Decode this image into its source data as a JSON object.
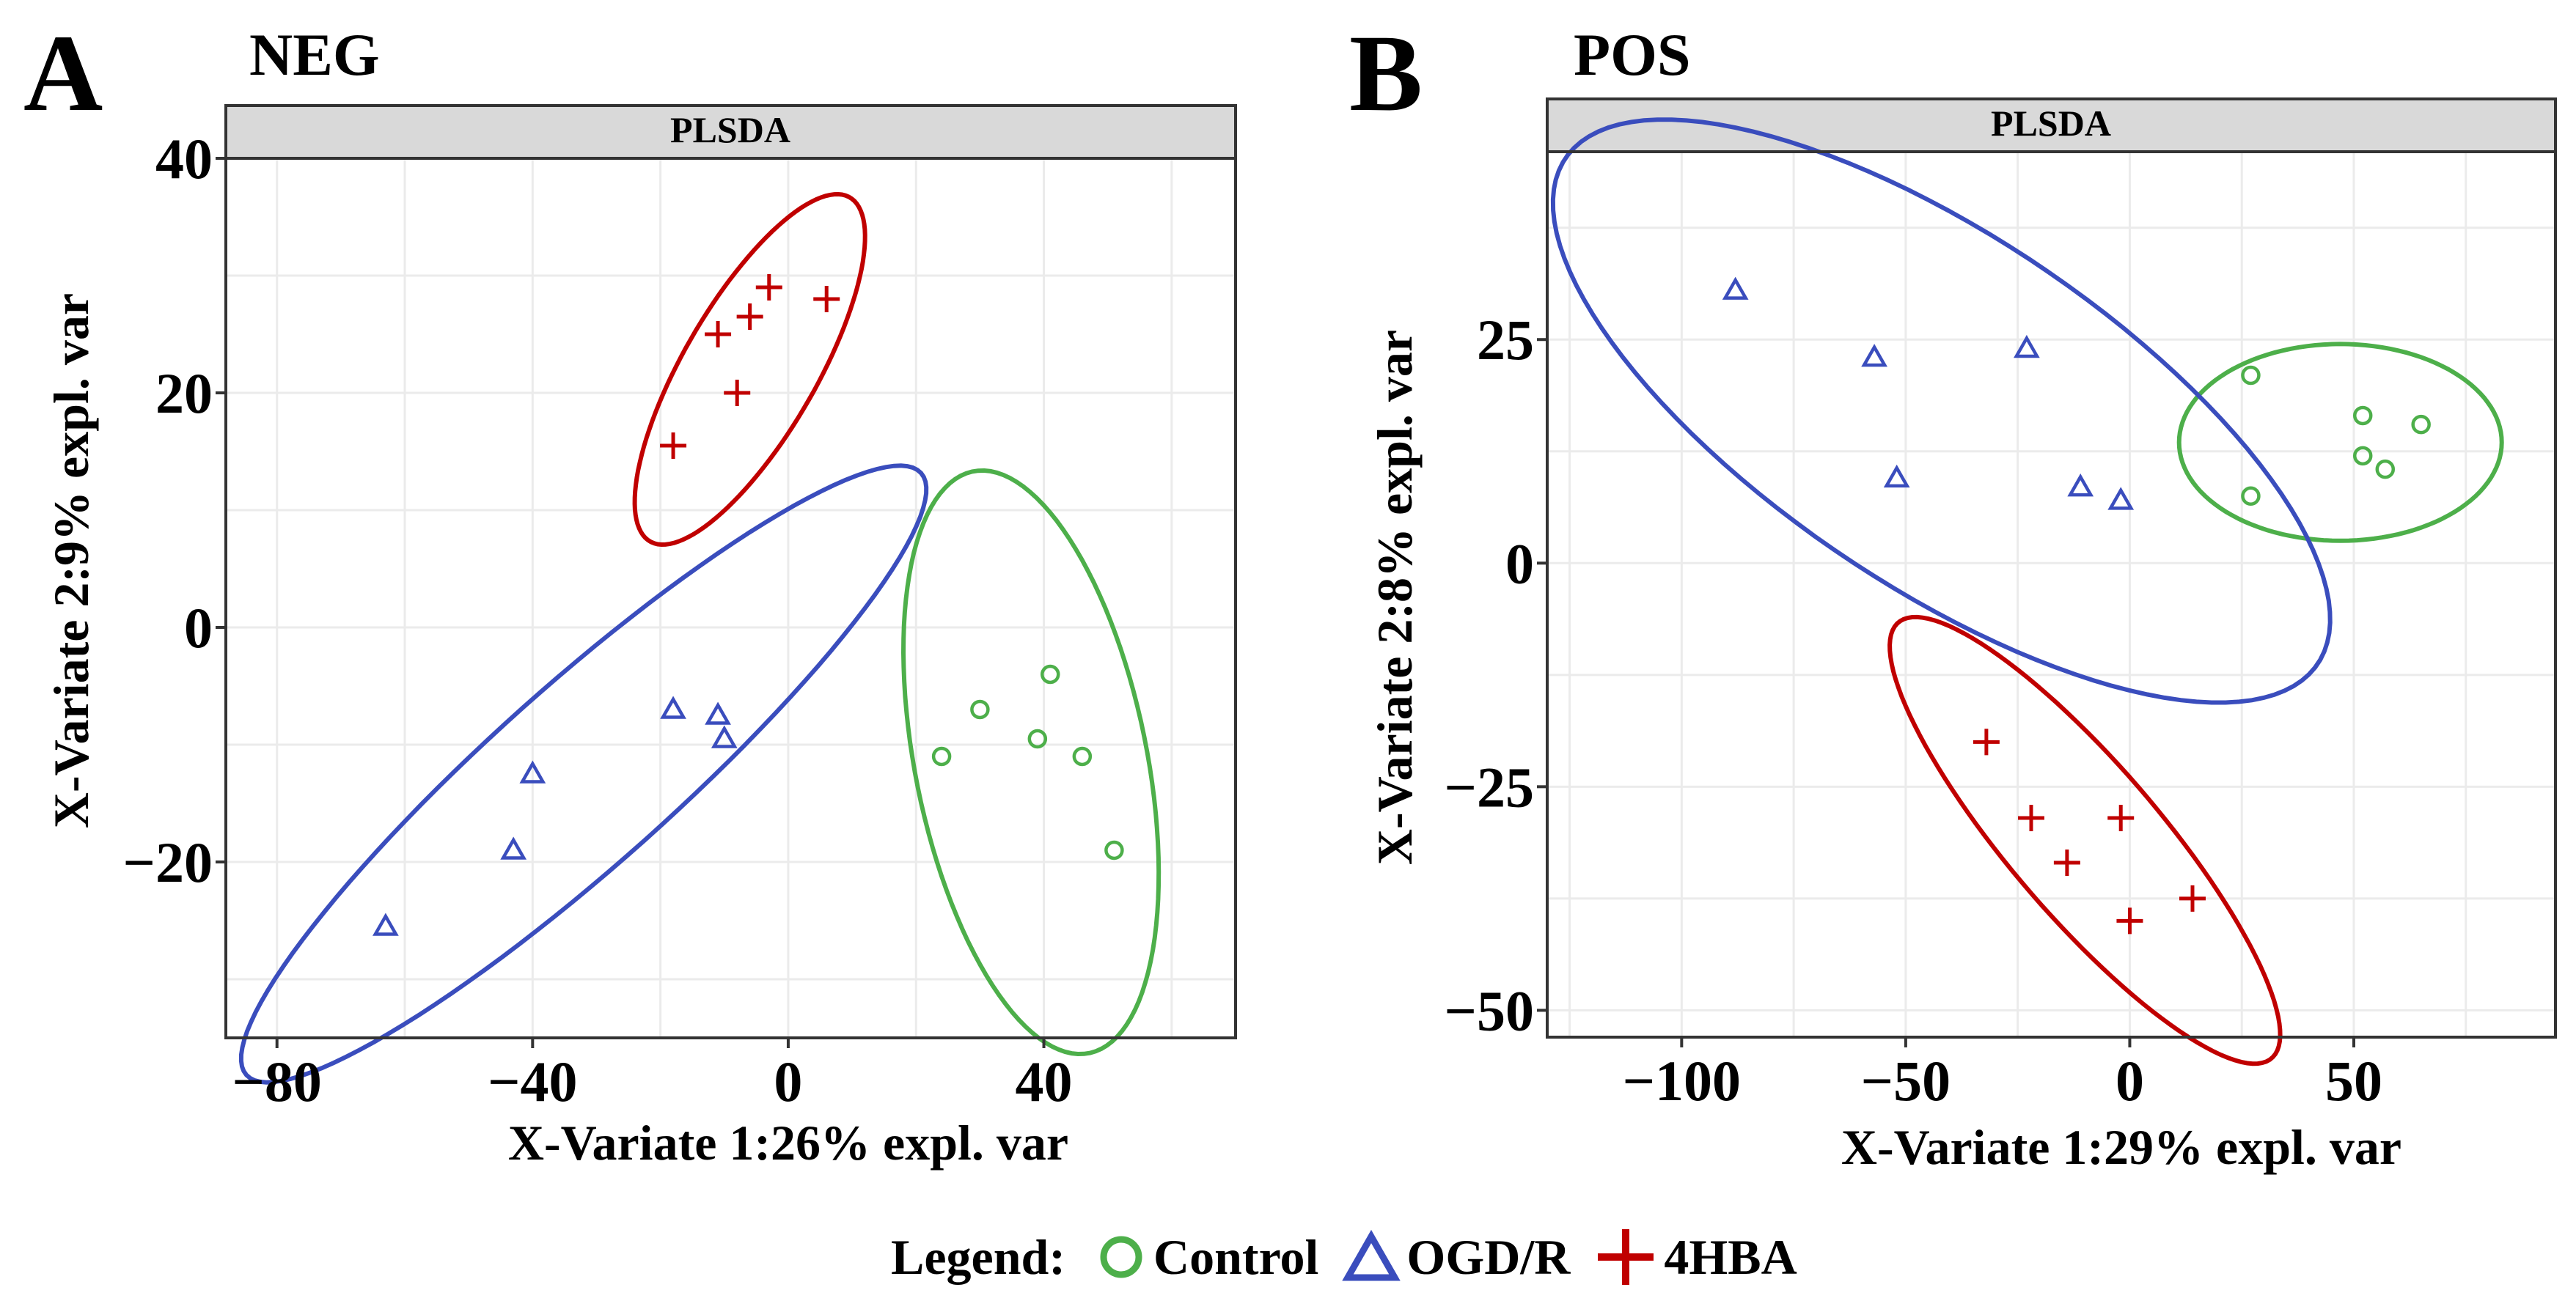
{
  "figure": {
    "legend_title": "Legend:",
    "legend": [
      {
        "label": "Control",
        "marker": "circle",
        "color": "#4DAF4A"
      },
      {
        "label": "OGD/R",
        "marker": "triangle",
        "color": "#3A4DBD"
      },
      {
        "label": "4HBA",
        "marker": "plus",
        "color": "#C00000"
      }
    ],
    "colors": {
      "control": "#4DAF4A",
      "ogdr": "#3A4DBD",
      "hba": "#C00000",
      "panel_grid": "#EBEBEB",
      "strip_fill": "#D9D9D9"
    }
  },
  "chart_data": [
    {
      "panel": "A",
      "title": "NEG",
      "type": "scatter",
      "strip_label": "PLSDA",
      "xlabel": "X-Variate 1:26% expl. var",
      "ylabel": "X-Variate 2:9%  expl. var",
      "xlim": [
        -88,
        70
      ],
      "ylim": [
        -35,
        40
      ],
      "xticks": [
        -80,
        -40,
        0,
        40
      ],
      "xtick_labels": [
        "−80",
        "−40",
        "0",
        "40"
      ],
      "yticks": [
        -20,
        0,
        20,
        40
      ],
      "ytick_labels": [
        "−20",
        "0",
        "20",
        "40"
      ],
      "grid": true,
      "series": [
        {
          "name": "Control",
          "marker": "circle",
          "color": "#4DAF4A",
          "x": [
            24,
            30,
            39,
            41,
            46,
            51
          ],
          "y": [
            -11,
            -7,
            -9.5,
            -4,
            -11,
            -19
          ],
          "ellipse": {
            "cx": 38,
            "cy": -11.5,
            "rx": 27,
            "ry": 17,
            "angle_deg": -60
          }
        },
        {
          "name": "OGD/R",
          "marker": "triangle",
          "color": "#3A4DBD",
          "x": [
            -63,
            -43,
            -40,
            -18,
            -11,
            -10
          ],
          "y": [
            -25.5,
            -19,
            -12.5,
            -7,
            -7.5,
            -9.5
          ],
          "ellipse": {
            "cx": -32,
            "cy": -12.5,
            "rx": 59,
            "ry": 9.2,
            "angle_deg": 25
          }
        },
        {
          "name": "4HBA",
          "marker": "plus",
          "color": "#C00000",
          "x": [
            -18,
            -11,
            -8,
            -6,
            -3,
            6
          ],
          "y": [
            15.5,
            25,
            20,
            26.5,
            29,
            28
          ],
          "ellipse": {
            "cx": -6,
            "cy": 22,
            "rx": 22,
            "ry": 8,
            "angle_deg": 38
          }
        }
      ]
    },
    {
      "panel": "B",
      "title": "POS",
      "type": "scatter",
      "strip_label": "PLSDA",
      "xlabel": "X-Variate 1:29% expl. var",
      "ylabel": "X-Variate 2:8%  expl. var",
      "xlim": [
        -130,
        95
      ],
      "ylim": [
        -53,
        46
      ],
      "xticks": [
        -100,
        -50,
        0,
        50
      ],
      "xtick_labels": [
        "−100",
        "−50",
        "0",
        "50"
      ],
      "yticks": [
        -50,
        -25,
        0,
        25
      ],
      "ytick_labels": [
        "−50",
        "−25",
        "0",
        "25"
      ],
      "grid": true,
      "series": [
        {
          "name": "Control",
          "marker": "circle",
          "color": "#4DAF4A",
          "x": [
            27,
            27,
            52,
            52,
            57,
            65
          ],
          "y": [
            21,
            7.5,
            16.5,
            12,
            10.5,
            15.5
          ],
          "ellipse": {
            "cx": 47,
            "cy": 13.5,
            "rx": 36,
            "ry": 11,
            "angle_deg": 0
          }
        },
        {
          "name": "OGD/R",
          "marker": "triangle",
          "color": "#3A4DBD",
          "x": [
            -88,
            -57,
            -52,
            -23,
            -11,
            -2
          ],
          "y": [
            30.5,
            23,
            9.5,
            24,
            8.5,
            7
          ],
          "ellipse": {
            "cx": -42,
            "cy": 17,
            "rx": 90,
            "ry": 22,
            "angle_deg": -16
          }
        },
        {
          "name": "4HBA",
          "marker": "plus",
          "color": "#C00000",
          "x": [
            -32,
            -22,
            -14,
            -2,
            0,
            14
          ],
          "y": [
            -20,
            -28.5,
            -33.5,
            -28.5,
            -40,
            -37.5
          ],
          "ellipse": {
            "cx": -10,
            "cy": -31,
            "rx": 49,
            "ry": 11,
            "angle_deg": -28
          }
        }
      ]
    }
  ]
}
